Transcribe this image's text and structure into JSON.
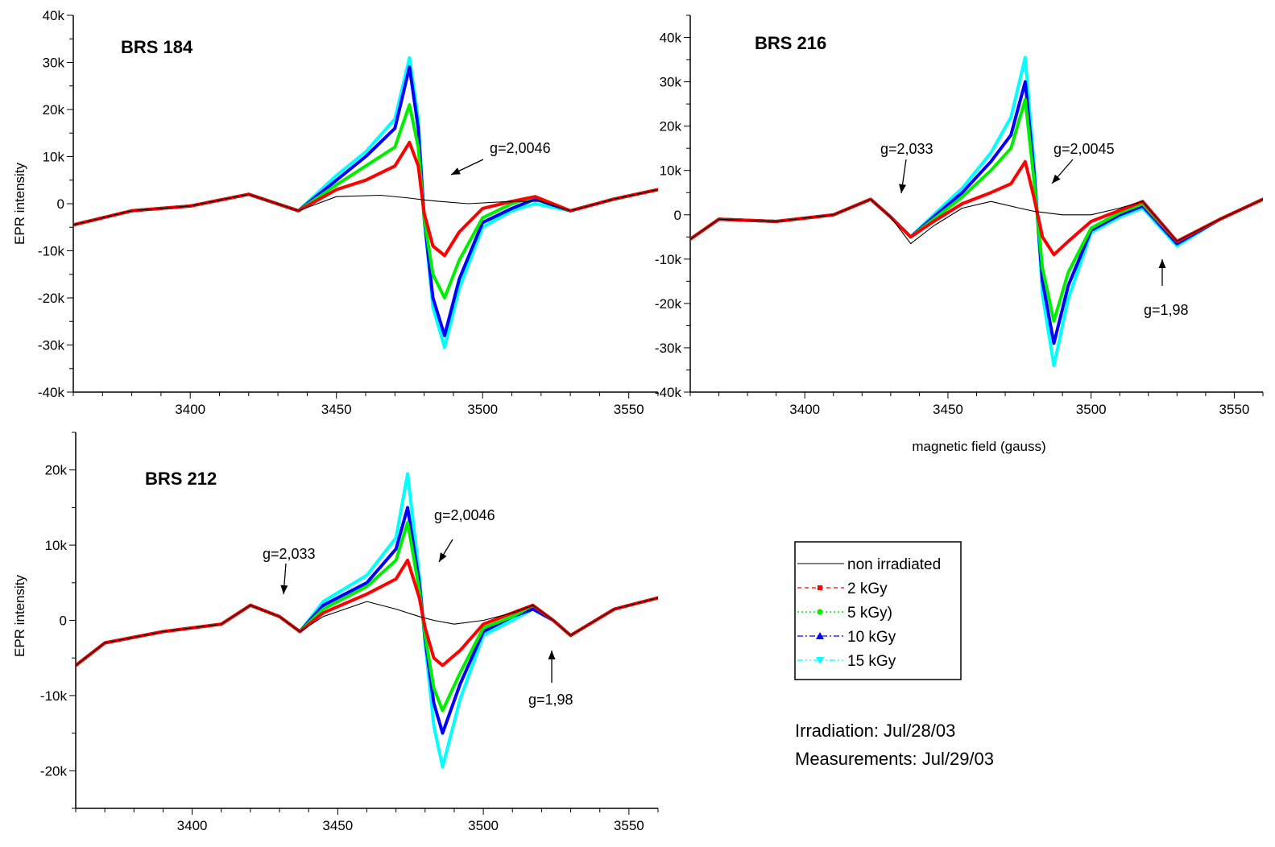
{
  "chart_data": [
    {
      "type": "line",
      "title": "BRS 184",
      "xlabel": "",
      "ylabel": "EPR intensity",
      "xlim": [
        3360,
        3560
      ],
      "ylim": [
        -40000,
        40000
      ],
      "x_ticks": [
        "3400",
        "3450",
        "3500",
        "3550"
      ],
      "x_tick_values": [
        3400,
        3450,
        3500,
        3550
      ],
      "y_ticks": [
        "-40k",
        "-30k",
        "-20k",
        "-10k",
        "0",
        "10k",
        "20k",
        "30k",
        "40k"
      ],
      "y_tick_values": [
        -40000,
        -30000,
        -20000,
        -10000,
        0,
        10000,
        20000,
        30000,
        40000
      ],
      "annotations": [
        {
          "text": "g=2,0046",
          "x": 3502,
          "y": 10500
        }
      ],
      "series": [
        {
          "name": "non irradiated",
          "x": [
            3360,
            3380,
            3400,
            3420,
            3437,
            3450,
            3465,
            3475,
            3480,
            3485,
            3495,
            3510,
            3520,
            3530,
            3545,
            3560
          ],
          "y": [
            -4500,
            -1500,
            -500,
            2000,
            -1500,
            1500,
            1800,
            1200,
            800,
            500,
            0,
            500,
            500,
            -1500,
            1000,
            3000
          ]
        },
        {
          "name": "2 kGy",
          "x": [
            3360,
            3380,
            3400,
            3420,
            3437,
            3450,
            3460,
            3470,
            3475,
            3478,
            3480,
            3483,
            3487,
            3492,
            3500,
            3510,
            3518,
            3530,
            3545,
            3560
          ],
          "y": [
            -4500,
            -1500,
            -500,
            2000,
            -1500,
            3000,
            5000,
            8000,
            13000,
            8000,
            -2000,
            -9000,
            -11000,
            -6000,
            -1000,
            500,
            1500,
            -1500,
            1000,
            3000
          ]
        },
        {
          "name": "5 kGy)",
          "x": [
            3360,
            3380,
            3400,
            3420,
            3437,
            3450,
            3460,
            3470,
            3475,
            3478,
            3480,
            3483,
            3487,
            3492,
            3500,
            3510,
            3518,
            3530,
            3545,
            3560
          ],
          "y": [
            -4500,
            -1500,
            -500,
            2000,
            -1500,
            4000,
            8000,
            12000,
            21000,
            12000,
            -3000,
            -15000,
            -20000,
            -12000,
            -3000,
            0,
            1500,
            -1500,
            1000,
            3000
          ]
        },
        {
          "name": "10 kGy",
          "x": [
            3360,
            3380,
            3400,
            3420,
            3437,
            3450,
            3460,
            3470,
            3475,
            3478,
            3480,
            3483,
            3487,
            3492,
            3500,
            3510,
            3518,
            3530,
            3545,
            3560
          ],
          "y": [
            -4500,
            -1500,
            -500,
            2000,
            -1500,
            5000,
            10000,
            16000,
            29000,
            16000,
            -3000,
            -20000,
            -28000,
            -16000,
            -4000,
            -1000,
            1000,
            -1500,
            1000,
            3000
          ]
        },
        {
          "name": "15 kGy",
          "x": [
            3360,
            3380,
            3400,
            3420,
            3437,
            3450,
            3460,
            3470,
            3475,
            3478,
            3480,
            3483,
            3487,
            3492,
            3500,
            3510,
            3518,
            3530,
            3545,
            3560
          ],
          "y": [
            -4500,
            -1500,
            -500,
            2000,
            -1500,
            6000,
            11000,
            18000,
            31000,
            18000,
            -3000,
            -22000,
            -30500,
            -18000,
            -5000,
            -1500,
            0,
            -1500,
            1000,
            3000
          ]
        }
      ]
    },
    {
      "type": "line",
      "title": "BRS 216",
      "xlabel": "magnetic field (gauss)",
      "ylabel": "",
      "xlim": [
        3360,
        3560
      ],
      "ylim": [
        -40000,
        45000
      ],
      "x_ticks": [
        "3400",
        "3450",
        "3500",
        "3550"
      ],
      "x_tick_values": [
        3400,
        3450,
        3500,
        3550
      ],
      "y_ticks": [
        "-40k",
        "-30k",
        "-20k",
        "-10k",
        "0",
        "10k",
        "20k",
        "30k",
        "40k"
      ],
      "y_tick_values": [
        -40000,
        -30000,
        -20000,
        -10000,
        0,
        10000,
        20000,
        30000,
        40000
      ],
      "annotations": [
        {
          "text": "g=2,033",
          "x": 3424,
          "y": 14500
        },
        {
          "text": "g=2,0045",
          "x": 3490,
          "y": 14500
        },
        {
          "text": "g=1,98",
          "x": 3515,
          "y": -21500
        }
      ],
      "series": [
        {
          "name": "non irradiated",
          "x": [
            3360,
            3370,
            3390,
            3410,
            3423,
            3430,
            3437,
            3445,
            3455,
            3465,
            3475,
            3480,
            3490,
            3500,
            3510,
            3518,
            3530,
            3545,
            3560
          ],
          "y": [
            -5500,
            -1000,
            -1500,
            0,
            3500,
            -500,
            -6500,
            -2500,
            1500,
            3000,
            1500,
            800,
            0,
            0,
            1500,
            3000,
            -6000,
            -1000,
            3500
          ]
        },
        {
          "name": "2 kGy",
          "x": [
            3360,
            3370,
            3390,
            3410,
            3423,
            3430,
            3437,
            3445,
            3455,
            3465,
            3472,
            3477,
            3480,
            3483,
            3487,
            3492,
            3500,
            3510,
            3518,
            3530,
            3545,
            3560
          ],
          "y": [
            -5500,
            -1000,
            -1500,
            0,
            3500,
            -500,
            -5000,
            -1500,
            2500,
            5000,
            7000,
            12000,
            4000,
            -5000,
            -9000,
            -6000,
            -1500,
            1000,
            3000,
            -6000,
            -1000,
            3500
          ]
        },
        {
          "name": "5 kGy)",
          "x": [
            3360,
            3370,
            3390,
            3410,
            3423,
            3430,
            3437,
            3445,
            3455,
            3465,
            3472,
            3477,
            3480,
            3483,
            3487,
            3492,
            3500,
            3510,
            3518,
            3530,
            3545,
            3560
          ],
          "y": [
            -5500,
            -1000,
            -1500,
            0,
            3500,
            -500,
            -5000,
            -1000,
            4000,
            10000,
            15000,
            26000,
            8000,
            -12000,
            -24000,
            -13000,
            -3000,
            500,
            2500,
            -6000,
            -1000,
            3500
          ]
        },
        {
          "name": "10 kGy",
          "x": [
            3360,
            3370,
            3390,
            3410,
            3423,
            3430,
            3437,
            3445,
            3455,
            3465,
            3472,
            3477,
            3480,
            3483,
            3487,
            3492,
            3500,
            3510,
            3518,
            3530,
            3545,
            3560
          ],
          "y": [
            -5500,
            -1000,
            -1500,
            0,
            3500,
            -500,
            -5000,
            -500,
            5000,
            12000,
            18000,
            30000,
            10000,
            -15000,
            -29000,
            -16000,
            -3500,
            0,
            2000,
            -6500,
            -1000,
            3500
          ]
        },
        {
          "name": "15 kGy",
          "x": [
            3360,
            3370,
            3390,
            3410,
            3423,
            3430,
            3437,
            3445,
            3455,
            3465,
            3472,
            3477,
            3480,
            3483,
            3487,
            3492,
            3500,
            3510,
            3518,
            3530,
            3545,
            3560
          ],
          "y": [
            -5500,
            -1000,
            -1500,
            0,
            3500,
            -500,
            -5000,
            0,
            6000,
            14000,
            22000,
            35500,
            12000,
            -18000,
            -34000,
            -19000,
            -4000,
            -500,
            1500,
            -7000,
            -1000,
            3500
          ]
        }
      ]
    },
    {
      "type": "line",
      "title": "BRS 212",
      "xlabel": "",
      "ylabel": "EPR intensity",
      "xlim": [
        3360,
        3560
      ],
      "ylim": [
        -25000,
        25000
      ],
      "x_ticks": [
        "3400",
        "3450",
        "3500",
        "3550"
      ],
      "x_tick_values": [
        3400,
        3450,
        3500,
        3550
      ],
      "y_ticks": [
        "-20k",
        "-10k",
        "0",
        "10k",
        "20k"
      ],
      "y_tick_values": [
        -20000,
        -10000,
        0,
        10000,
        20000
      ],
      "annotations": [
        {
          "text": "g=2,033",
          "x": 3432,
          "y": 8000
        },
        {
          "text": "g=2,0046",
          "x": 3485,
          "y": 13500
        },
        {
          "text": "g=1,98",
          "x": 3523,
          "y": -10500
        }
      ],
      "series": [
        {
          "name": "non irradiated",
          "x": [
            3360,
            3370,
            3390,
            3410,
            3420,
            3430,
            3437,
            3445,
            3460,
            3470,
            3478,
            3483,
            3490,
            3500,
            3510,
            3517,
            3524,
            3530,
            3545,
            3560
          ],
          "y": [
            -6000,
            -3000,
            -1500,
            -500,
            2000,
            500,
            -1500,
            500,
            2500,
            1500,
            500,
            0,
            -500,
            0,
            1000,
            2000,
            0,
            -2000,
            1500,
            3000
          ]
        },
        {
          "name": "2 kGy",
          "x": [
            3360,
            3370,
            3390,
            3410,
            3420,
            3430,
            3437,
            3445,
            3460,
            3470,
            3474,
            3478,
            3480,
            3483,
            3486,
            3492,
            3500,
            3510,
            3517,
            3524,
            3530,
            3545,
            3560
          ],
          "y": [
            -6000,
            -3000,
            -1500,
            -500,
            2000,
            500,
            -1500,
            1000,
            3500,
            5500,
            8000,
            3000,
            -1000,
            -5000,
            -6000,
            -4000,
            -500,
            1000,
            2000,
            0,
            -2000,
            1500,
            3000
          ]
        },
        {
          "name": "5 kGy)",
          "x": [
            3360,
            3370,
            3390,
            3410,
            3420,
            3430,
            3437,
            3445,
            3460,
            3470,
            3474,
            3478,
            3480,
            3483,
            3486,
            3492,
            3500,
            3510,
            3517,
            3524,
            3530,
            3545,
            3560
          ],
          "y": [
            -6000,
            -3000,
            -1500,
            -500,
            2000,
            500,
            -1500,
            1500,
            4500,
            8000,
            13000,
            4000,
            -2000,
            -9000,
            -12000,
            -7000,
            -1000,
            500,
            2000,
            0,
            -2000,
            1500,
            3000
          ]
        },
        {
          "name": "10 kGy",
          "x": [
            3360,
            3370,
            3390,
            3410,
            3420,
            3430,
            3437,
            3445,
            3460,
            3470,
            3474,
            3478,
            3480,
            3483,
            3486,
            3492,
            3500,
            3510,
            3517,
            3524,
            3530,
            3545,
            3560
          ],
          "y": [
            -6000,
            -3000,
            -1500,
            -500,
            2000,
            500,
            -1500,
            2000,
            5000,
            9500,
            15000,
            5000,
            -2500,
            -11000,
            -15000,
            -8500,
            -1500,
            500,
            1500,
            0,
            -2000,
            1500,
            3000
          ]
        },
        {
          "name": "15 kGy",
          "x": [
            3360,
            3370,
            3390,
            3410,
            3420,
            3430,
            3437,
            3445,
            3460,
            3470,
            3474,
            3478,
            3480,
            3483,
            3486,
            3492,
            3500,
            3510,
            3517,
            3524,
            3530,
            3545,
            3560
          ],
          "y": [
            -6000,
            -3000,
            -1500,
            -500,
            2000,
            500,
            -1500,
            2500,
            6000,
            11000,
            19500,
            6000,
            -3000,
            -14000,
            -19500,
            -10500,
            -2000,
            0,
            1500,
            0,
            -2000,
            1500,
            3000
          ]
        }
      ]
    }
  ],
  "legend": {
    "entries": [
      {
        "label": "non irradiated",
        "color": "#000000"
      },
      {
        "label": "2 kGy",
        "color": "#ff0000"
      },
      {
        "label": "5 kGy)",
        "color": "#00ee00"
      },
      {
        "label": "10 kGy",
        "color": "#0000ff"
      },
      {
        "label": "15 kGy",
        "color": "#00ffff"
      }
    ]
  },
  "footnote": {
    "irradiation": "Irradiation: Jul/28/03",
    "measurements": "Measurements: Jul/29/03"
  },
  "colors": {
    "non_irradiated": "#000000",
    "dose_2": "#ff0000",
    "dose_5": "#00ee00",
    "dose_10": "#0000ff",
    "dose_15": "#00ffff"
  }
}
